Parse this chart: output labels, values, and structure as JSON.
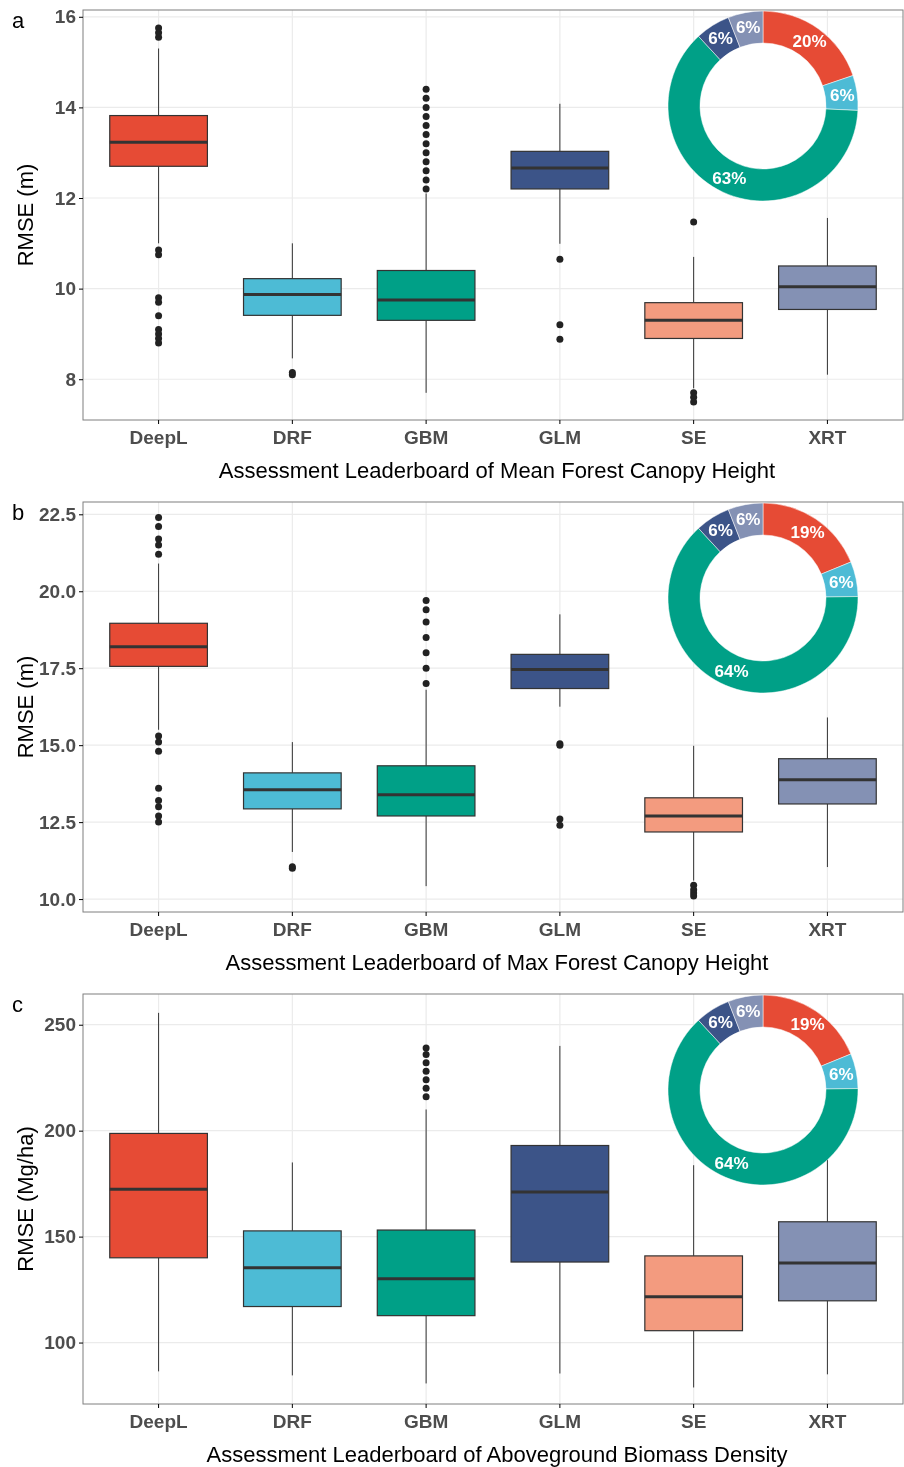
{
  "chart_data": [
    {
      "type": "box",
      "title": "a",
      "xlabel": "Assessment Leaderboard of Mean Forest Canopy Height",
      "ylabel": "RMSE (m)",
      "categories": [
        "DeepL",
        "DRF",
        "GBM",
        "GLM",
        "SE",
        "XRT"
      ],
      "colors": [
        "#e64b35",
        "#4dbbd5",
        "#00a087",
        "#3c5488",
        "#f39b7f",
        "#8491b4"
      ],
      "ylim": [
        7.1,
        16.15
      ],
      "yticks": [
        8,
        10,
        12,
        14,
        16
      ],
      "grid": true,
      "boxes": [
        {
          "low": 11.0,
          "q1": 12.7,
          "median": 13.23,
          "q3": 13.82,
          "high": 15.3,
          "outliers": [
            10.85,
            10.75,
            9.8,
            9.7,
            9.4,
            9.1,
            9.0,
            8.9,
            8.8,
            15.55,
            15.65,
            15.75
          ]
        },
        {
          "low": 8.46,
          "q1": 9.41,
          "median": 9.87,
          "q3": 10.22,
          "high": 11.0,
          "outliers": [
            8.1,
            8.15
          ]
        },
        {
          "low": 7.7,
          "q1": 9.3,
          "median": 9.75,
          "q3": 10.4,
          "high": 12.1,
          "outliers": [
            12.2,
            12.4,
            12.6,
            12.8,
            13.0,
            13.2,
            13.4,
            13.6,
            13.8,
            14.0,
            14.2,
            14.4
          ]
        },
        {
          "low": 10.99,
          "q1": 12.2,
          "median": 12.66,
          "q3": 13.03,
          "high": 14.08,
          "outliers": [
            10.65,
            9.2,
            8.88
          ]
        },
        {
          "low": 7.8,
          "q1": 8.9,
          "median": 9.3,
          "q3": 9.69,
          "high": 10.7,
          "outliers": [
            11.47,
            7.7,
            7.6,
            7.5
          ]
        },
        {
          "low": 8.1,
          "q1": 9.54,
          "median": 10.04,
          "q3": 10.5,
          "high": 11.56
        }
      ]
    },
    {
      "type": "donut",
      "categories": [
        null,
        null,
        null,
        null,
        null
      ],
      "values": [
        20,
        6,
        63,
        6,
        6
      ],
      "colors": [
        "#e64b35",
        "#4dbbd5",
        "#00a087",
        "#3c5488",
        "#8491b4"
      ],
      "value_labels": [
        "20%",
        "6%",
        "63%",
        "6%",
        "6%"
      ]
    },
    {
      "type": "box",
      "title": "b",
      "xlabel": "Assessment Leaderboard of Max Forest Canopy Height",
      "ylabel": "RMSE (m)",
      "categories": [
        "DeepL",
        "DRF",
        "GBM",
        "GLM",
        "SE",
        "XRT"
      ],
      "colors": [
        "#e64b35",
        "#4dbbd5",
        "#00a087",
        "#3c5488",
        "#f39b7f",
        "#8491b4"
      ],
      "ylim": [
        9.58,
        22.9
      ],
      "yticks": [
        {
          "value": 10,
          "label": "10.0"
        },
        12.5,
        {
          "value": 15,
          "label": "15.0"
        },
        17.5,
        {
          "value": 20,
          "label": "20.0"
        },
        22.5
      ],
      "grid": true,
      "boxes": [
        {
          "low": 15.5,
          "q1": 17.56,
          "median": 18.2,
          "q3": 18.96,
          "high": 20.9,
          "outliers": [
            21.2,
            21.5,
            21.7,
            22.1,
            22.4,
            15.3,
            15.1,
            14.8,
            13.6,
            13.2,
            13.0,
            12.7,
            12.5
          ]
        },
        {
          "low": 11.53,
          "q1": 12.93,
          "median": 13.55,
          "q3": 14.1,
          "high": 15.1,
          "outliers": [
            11.0,
            11.05
          ]
        },
        {
          "low": 10.42,
          "q1": 12.7,
          "median": 13.39,
          "q3": 14.33,
          "high": 16.8,
          "outliers": [
            17.0,
            17.5,
            18.0,
            18.5,
            19.0,
            19.4,
            19.7
          ]
        },
        {
          "low": 16.25,
          "q1": 16.84,
          "median": 17.46,
          "q3": 17.95,
          "high": 19.25,
          "outliers": [
            15.05,
            15.0,
            12.6,
            12.4
          ]
        },
        {
          "low": 10.6,
          "q1": 12.18,
          "median": 12.7,
          "q3": 13.29,
          "high": 14.98,
          "outliers": [
            10.45,
            10.3,
            10.2,
            10.1
          ]
        },
        {
          "low": 11.04,
          "q1": 13.09,
          "median": 13.88,
          "q3": 14.56,
          "high": 15.9
        }
      ]
    },
    {
      "type": "donut",
      "categories": [
        null,
        null,
        null,
        null,
        null
      ],
      "values": [
        19,
        6,
        64,
        6,
        6
      ],
      "colors": [
        "#e64b35",
        "#4dbbd5",
        "#00a087",
        "#3c5488",
        "#8491b4"
      ],
      "value_labels": [
        "19%",
        "6%",
        "64%",
        "6%",
        "6%"
      ]
    },
    {
      "type": "box",
      "title": "c",
      "xlabel": "Assessment Leaderboard of Aboveground Biomass Density",
      "ylabel": "RMSE (Mg/ha)",
      "categories": [
        "DeepL",
        "DRF",
        "GBM",
        "GLM",
        "SE",
        "XRT"
      ],
      "colors": [
        "#e64b35",
        "#4dbbd5",
        "#00a087",
        "#3c5488",
        "#f39b7f",
        "#8491b4"
      ],
      "ylim": [
        71,
        264.5
      ],
      "yticks": [
        100,
        150,
        200,
        250
      ],
      "grid": true,
      "boxes": [
        {
          "low": 86.4,
          "q1": 140,
          "median": 172.4,
          "q3": 198.7,
          "high": 255.6
        },
        {
          "low": 84.5,
          "q1": 117,
          "median": 135.3,
          "q3": 152.7,
          "high": 185
        },
        {
          "low": 80.7,
          "q1": 112.7,
          "median": 130.1,
          "q3": 153.1,
          "high": 210,
          "outliers": [
            216,
            220,
            224,
            228,
            232,
            236,
            239
          ]
        },
        {
          "low": 85.4,
          "q1": 138,
          "median": 171,
          "q3": 193,
          "high": 240
        },
        {
          "low": 78.8,
          "q1": 105.6,
          "median": 121.6,
          "q3": 140.9,
          "high": 183.7
        },
        {
          "low": 85,
          "q1": 119.7,
          "median": 137.6,
          "q3": 157,
          "high": 187
        }
      ]
    },
    {
      "type": "donut",
      "categories": [
        null,
        null,
        null,
        null,
        null
      ],
      "values": [
        19,
        6,
        64,
        6,
        6
      ],
      "colors": [
        "#e64b35",
        "#4dbbd5",
        "#00a087",
        "#3c5488",
        "#8491b4"
      ],
      "value_labels": [
        "19%",
        "6%",
        "64%",
        "6%",
        "6%"
      ]
    }
  ]
}
